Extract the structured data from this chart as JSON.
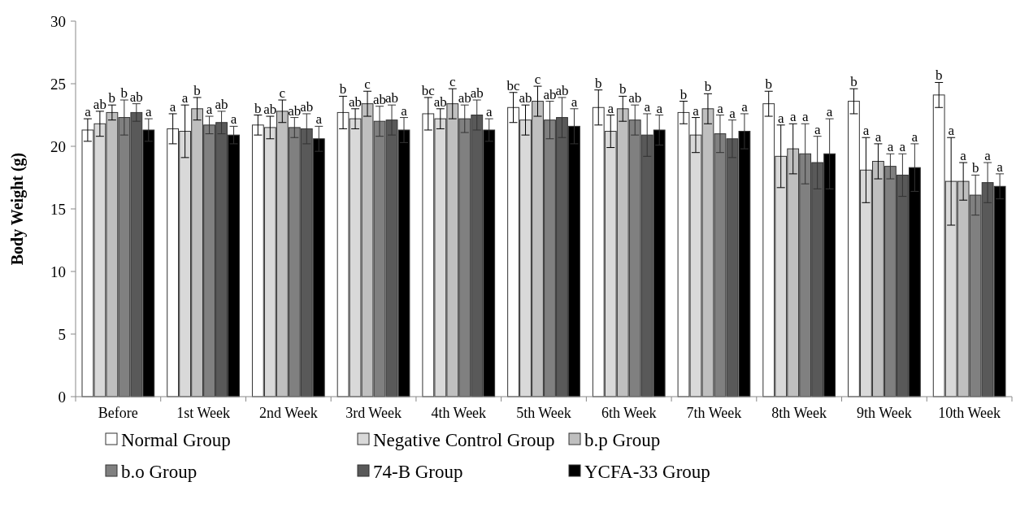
{
  "chart_data": {
    "type": "bar",
    "ylabel": "Body Weight (g)",
    "categories": [
      "Before",
      "1st Week",
      "2nd Week",
      "3rd Week",
      "4th Week",
      "5th Week",
      "6th Week",
      "7th Week",
      "8th Week",
      "9th Week",
      "10th Week"
    ],
    "ylim": [
      0,
      30
    ],
    "yticks": [
      0,
      5,
      10,
      15,
      20,
      25,
      30
    ],
    "grid": false,
    "legend": "bottom",
    "series": [
      {
        "name": "Normal Group",
        "color": "#ffffff",
        "values": [
          21.3,
          21.4,
          21.7,
          22.7,
          22.6,
          23.1,
          23.1,
          22.7,
          23.4,
          23.6,
          24.1
        ],
        "errors": [
          0.9,
          1.2,
          0.8,
          1.3,
          1.3,
          1.2,
          1.4,
          0.9,
          1.0,
          1.0,
          1.0
        ],
        "value_labels": [
          "a",
          "a",
          "b",
          "b",
          "bc",
          "bc",
          "b",
          "b",
          "b",
          "b",
          "b"
        ]
      },
      {
        "name": "Negative Control Group",
        "color": "#d9d9d9",
        "values": [
          21.8,
          21.2,
          21.5,
          22.2,
          22.2,
          22.1,
          21.2,
          20.9,
          19.2,
          18.1,
          17.2
        ],
        "errors": [
          1.0,
          2.1,
          0.9,
          0.8,
          0.8,
          1.2,
          1.3,
          1.4,
          2.5,
          2.6,
          3.5
        ],
        "value_labels": [
          "ab",
          "a",
          "ab",
          "ab",
          "ab",
          "ab",
          "a",
          "a",
          "a",
          "a",
          "a"
        ]
      },
      {
        "name": "b.p Group",
        "color": "#bfbfbf",
        "values": [
          22.7,
          23.0,
          22.8,
          23.4,
          23.4,
          23.6,
          23.0,
          23.0,
          19.8,
          18.8,
          17.2
        ],
        "errors": [
          0.6,
          0.9,
          0.9,
          1.0,
          1.2,
          1.2,
          1.0,
          1.2,
          2.0,
          1.4,
          1.5
        ],
        "value_labels": [
          "b",
          "b",
          "c",
          "c",
          "c",
          "c",
          "b",
          "b",
          "a",
          "a",
          "a"
        ]
      },
      {
        "name": "b.o Group",
        "color": "#808080",
        "values": [
          22.3,
          21.7,
          21.5,
          22.0,
          22.2,
          22.1,
          22.1,
          21.0,
          19.4,
          18.4,
          16.1
        ],
        "errors": [
          1.4,
          0.7,
          0.8,
          1.2,
          1.1,
          1.5,
          1.2,
          1.5,
          2.4,
          1.0,
          1.6
        ],
        "value_labels": [
          "b",
          "a",
          "ab",
          "ab",
          "ab",
          "ab",
          "ab",
          "a",
          "a",
          "a",
          "b"
        ]
      },
      {
        "name": "74-B Group",
        "color": "#595959",
        "values": [
          22.7,
          21.9,
          21.4,
          22.1,
          22.5,
          22.3,
          20.9,
          20.6,
          18.7,
          17.7,
          17.1
        ],
        "errors": [
          0.7,
          0.9,
          1.2,
          1.2,
          1.2,
          1.6,
          1.7,
          1.5,
          2.1,
          1.7,
          1.6
        ],
        "value_labels": [
          "ab",
          "ab",
          "ab",
          "ab",
          "ab",
          "ab",
          "a",
          "a",
          "a",
          "a",
          "a"
        ]
      },
      {
        "name": "YCFA-33 Group",
        "color": "#000000",
        "values": [
          21.3,
          20.9,
          20.6,
          21.3,
          21.3,
          21.6,
          21.3,
          21.2,
          19.4,
          18.3,
          16.8
        ],
        "errors": [
          0.9,
          0.7,
          1.0,
          1.0,
          0.9,
          1.4,
          1.2,
          1.4,
          2.8,
          1.9,
          1.0
        ],
        "value_labels": [
          "a",
          "a",
          "a",
          "a",
          "a",
          "a",
          "a",
          "a",
          "a",
          "a",
          "a"
        ]
      }
    ]
  }
}
